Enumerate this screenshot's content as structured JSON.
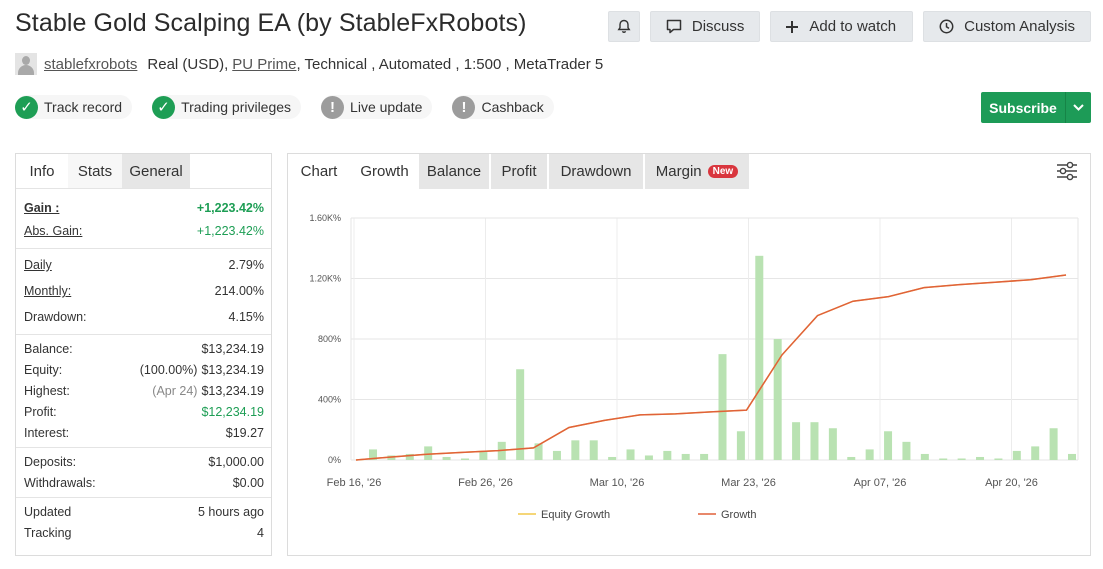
{
  "header": {
    "title": "Stable Gold Scalping EA (by StableFxRobots)",
    "discuss_label": "Discuss",
    "watch_label": "Add to watch",
    "analysis_label": "Custom Analysis"
  },
  "meta": {
    "user": "stablefxrobots",
    "account_type": "Real (USD),",
    "broker": "PU Prime",
    "rest": ", Technical , Automated , 1:500 , MetaTrader 5"
  },
  "badges": {
    "track": "Track record",
    "privileges": "Trading privileges",
    "live": "Live update",
    "cashback": "Cashback"
  },
  "subscribe_label": "Subscribe",
  "stats": {
    "tabs": {
      "info": "Info",
      "stats": "Stats",
      "general": "General"
    },
    "gain": {
      "label": "Gain :",
      "value": "+1,223.42%"
    },
    "abs_gain": {
      "label": "Abs. Gain:",
      "value": "+1,223.42%"
    },
    "daily": {
      "label": "Daily",
      "value": "2.79%"
    },
    "monthly": {
      "label": "Monthly:",
      "value": "214.00%"
    },
    "drawdown": {
      "label": "Drawdown:",
      "value": "4.15%"
    },
    "balance": {
      "label": "Balance:",
      "value": "$13,234.19"
    },
    "equity": {
      "label": "Equity:",
      "pct": "(100.00%)",
      "value": "$13,234.19"
    },
    "highest": {
      "label": "Highest:",
      "date": "(Apr 24)",
      "value": "$13,234.19"
    },
    "profit": {
      "label": "Profit:",
      "value": "$12,234.19"
    },
    "interest": {
      "label": "Interest:",
      "value": "$19.27"
    },
    "deposits": {
      "label": "Deposits:",
      "value": "$1,000.00"
    },
    "withdrawals": {
      "label": "Withdrawals:",
      "value": "$0.00"
    },
    "updated": {
      "label": "Updated",
      "value": "5 hours ago"
    },
    "tracking": {
      "label": "Tracking",
      "value": "4"
    }
  },
  "chart_tabs": {
    "chart": "Chart",
    "growth": "Growth",
    "balance": "Balance",
    "profit": "Profit",
    "drawdown": "Drawdown",
    "margin": "Margin",
    "new_badge": "New"
  },
  "colors": {
    "gain_green": "#1e9e55",
    "subscribe": "#1d9b57",
    "growth_line": "#e0613a",
    "equity_line": "#f2c94c",
    "bars": "#b9e2b2"
  },
  "chart_data": {
    "type": "line",
    "y_ticks": [
      "0%",
      "400%",
      "800%",
      "1.20K%",
      "1.60K%"
    ],
    "ylim": [
      0,
      1600
    ],
    "x_tick_labels": [
      "Feb 16, '26",
      "Feb 26, '26",
      "Mar 10, '26",
      "Mar 23, '26",
      "Apr 07, '26",
      "Apr 20, '26"
    ],
    "grid": true,
    "legend_position": "bottom",
    "series": [
      {
        "name": "Equity Growth",
        "values": [
          0,
          20,
          38,
          50,
          62,
          80,
          215,
          262,
          298,
          305,
          318,
          330,
          695,
          955,
          1050,
          1080,
          1140,
          1160,
          1175,
          1192,
          1223
        ]
      },
      {
        "name": "Growth",
        "values": [
          0,
          20,
          38,
          50,
          62,
          80,
          215,
          262,
          298,
          305,
          318,
          330,
          695,
          955,
          1050,
          1080,
          1140,
          1160,
          1175,
          1192,
          1223
        ]
      }
    ],
    "bars_relative": [
      70,
      30,
      40,
      90,
      20,
      10,
      60,
      120,
      600,
      110,
      60,
      130,
      130,
      20,
      70,
      30,
      60,
      40,
      40,
      700,
      190,
      1350,
      800,
      250,
      250,
      210,
      20,
      70,
      190,
      120,
      40,
      10,
      10,
      20,
      10,
      60,
      90,
      210,
      40
    ]
  }
}
